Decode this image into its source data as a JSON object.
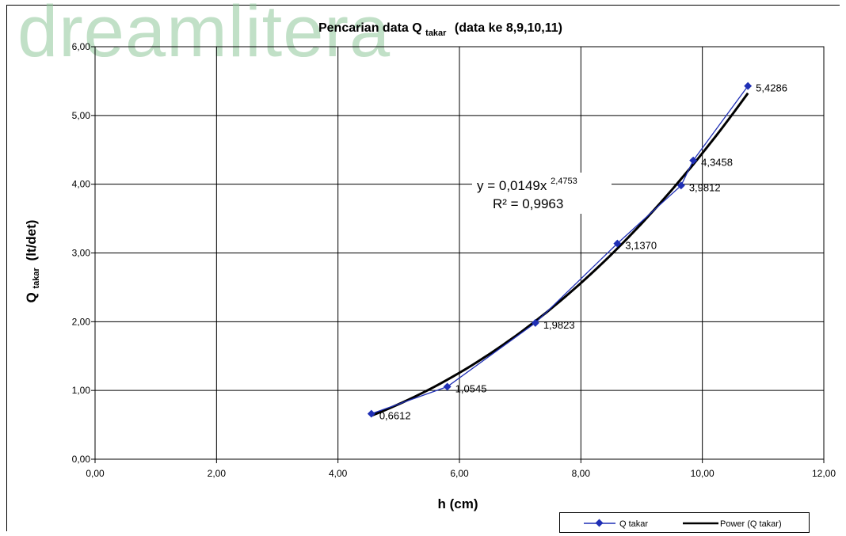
{
  "watermark": "dreamlitera",
  "chart_data": {
    "type": "scatter",
    "title_main": "Pencarian data Q",
    "title_sub": "takar",
    "title_tail": "(data ke 8,9,10,11)",
    "xlabel": "h (cm)",
    "ylabel_main": "Q",
    "ylabel_sub": "takar",
    "ylabel_tail": "(lt/det)",
    "xlim": [
      0,
      12
    ],
    "ylim": [
      0,
      6
    ],
    "x_ticks": [
      "0,00",
      "2,00",
      "4,00",
      "6,00",
      "8,00",
      "10,00",
      "12,00"
    ],
    "y_ticks": [
      "0,00",
      "1,00",
      "2,00",
      "3,00",
      "4,00",
      "5,00",
      "6,00"
    ],
    "grid": true,
    "series": [
      {
        "name": "Q takar",
        "color": "#1f2fb5",
        "marker": "diamond",
        "x": [
          4.55,
          5.8,
          7.25,
          8.6,
          9.65,
          9.85,
          10.75
        ],
        "y": [
          0.6612,
          1.0545,
          1.9823,
          3.137,
          3.9812,
          4.3458,
          5.4286
        ],
        "labels": [
          "0,6612",
          "1,0545",
          "1,9823",
          "3,1370",
          "3,9812",
          "4,3458",
          "5,4286"
        ]
      },
      {
        "name": "Power (Q takar)",
        "color": "#000000",
        "type": "trendline",
        "coef": 0.0149,
        "exponent": 2.4753,
        "x_range": [
          4.55,
          10.75
        ]
      }
    ],
    "equation": {
      "y_prefix": "y = 0,0149x",
      "exponent": "2,4753",
      "r2": "R² = 0,9963"
    },
    "legend_position": "bottom-right"
  }
}
